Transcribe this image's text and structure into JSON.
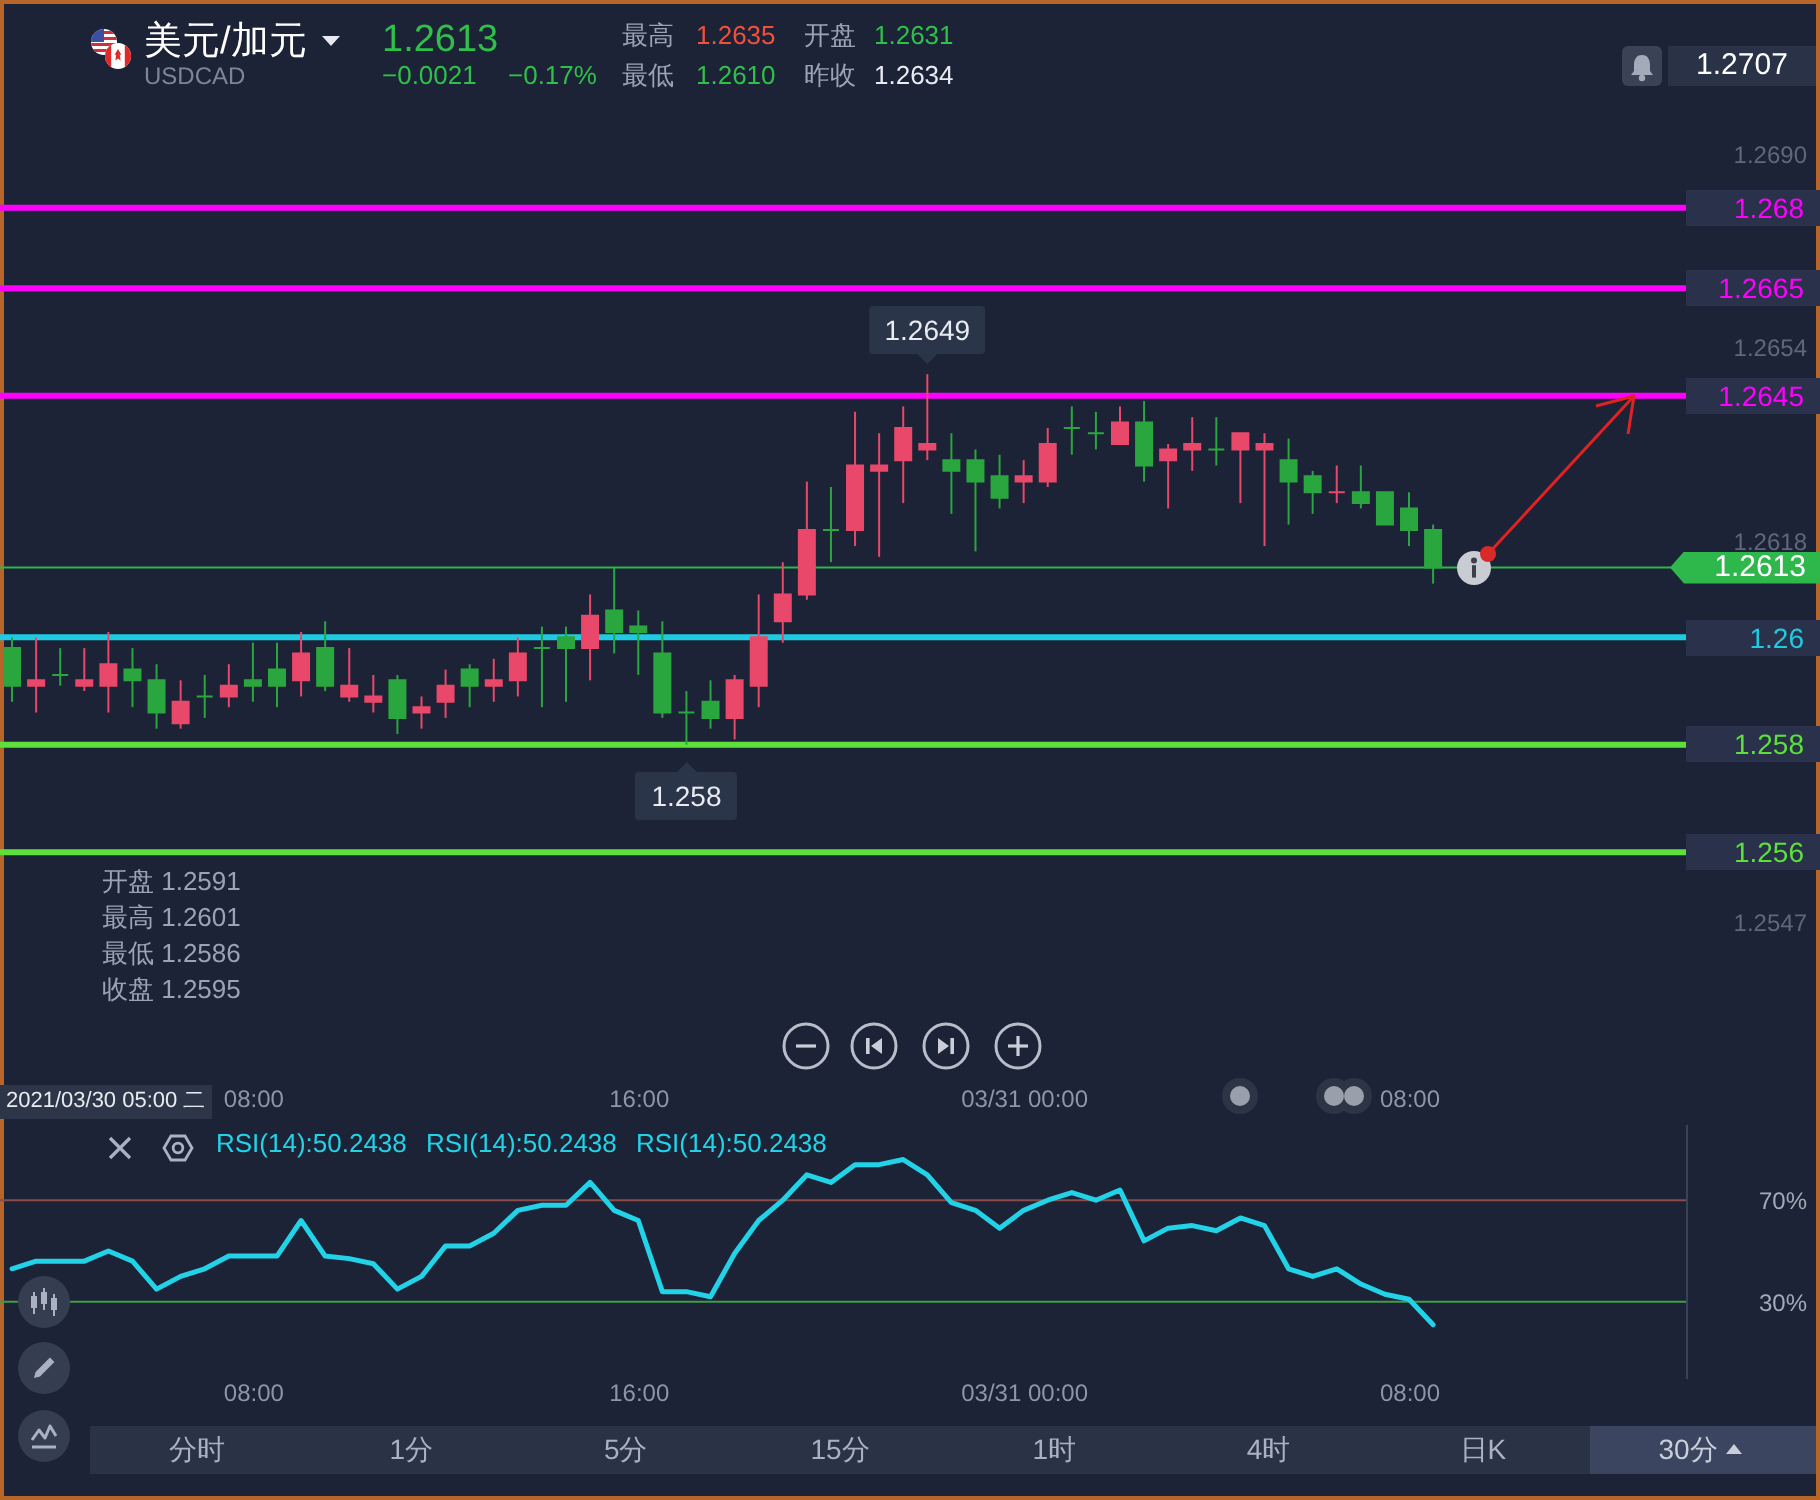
{
  "chart_data": [
    {
      "type": "other",
      "title": "美元/加元",
      "subtitle": "USDCAD",
      "annotations": [
        "1.2613",
        "−0.0021",
        "−0.17%",
        "最高",
        "1.2635",
        "开盘",
        "1.2631",
        "最低",
        "1.2610",
        "昨收",
        "1.2634",
        "1.2707"
      ]
    },
    {
      "type": "candlestick",
      "x": [
        "2021-03-30T03:00",
        "2021-03-30T03:30",
        "2021-03-30T04:00",
        "2021-03-30T04:30",
        "2021-03-30T05:00",
        "2021-03-30T05:30",
        "2021-03-30T06:00",
        "2021-03-30T06:30",
        "2021-03-30T07:00",
        "2021-03-30T07:30",
        "2021-03-30T08:00",
        "2021-03-30T08:30",
        "2021-03-30T09:00",
        "2021-03-30T09:30",
        "2021-03-30T10:00",
        "2021-03-30T10:30",
        "2021-03-30T11:00",
        "2021-03-30T11:30",
        "2021-03-30T12:00",
        "2021-03-30T12:30",
        "2021-03-30T13:00",
        "2021-03-30T13:30",
        "2021-03-30T14:00",
        "2021-03-30T14:30",
        "2021-03-30T15:00",
        "2021-03-30T15:30",
        "2021-03-30T16:00",
        "2021-03-30T16:30",
        "2021-03-30T17:00",
        "2021-03-30T17:30",
        "2021-03-30T18:00",
        "2021-03-30T18:30",
        "2021-03-30T19:00",
        "2021-03-30T19:30",
        "2021-03-30T20:00",
        "2021-03-30T20:30",
        "2021-03-30T21:00",
        "2021-03-30T21:30",
        "2021-03-30T22:00",
        "2021-03-30T22:30",
        "2021-03-30T23:00",
        "2021-03-30T23:30",
        "2021-03-31T00:00",
        "2021-03-31T00:30",
        "2021-03-31T01:00",
        "2021-03-31T01:30",
        "2021-03-31T02:00",
        "2021-03-31T02:30",
        "2021-03-31T03:00",
        "2021-03-31T03:30",
        "2021-03-31T04:00",
        "2021-03-31T04:30",
        "2021-03-31T05:00",
        "2021-03-31T05:30",
        "2021-03-31T06:00",
        "2021-03-31T06:30",
        "2021-03-31T07:00",
        "2021-03-31T07:30",
        "2021-03-31T08:00",
        "2021-03-31T08:30"
      ],
      "ohlc": [
        [
          1.2598,
          1.26,
          1.2588,
          1.2591
        ],
        [
          1.2591,
          1.26,
          1.2586,
          1.2592
        ],
        [
          1.2593,
          1.2598,
          1.2591,
          1.2593
        ],
        [
          1.2591,
          1.2598,
          1.259,
          1.2592
        ],
        [
          1.2591,
          1.2601,
          1.2586,
          1.2595
        ],
        [
          1.2594,
          1.2598,
          1.2587,
          1.2592
        ],
        [
          1.2592,
          1.2595,
          1.2583,
          1.2586
        ],
        [
          1.2584,
          1.2592,
          1.2583,
          1.2588
        ],
        [
          1.2589,
          1.2593,
          1.2585,
          1.2589
        ],
        [
          1.2589,
          1.2595,
          1.2587,
          1.2591
        ],
        [
          1.2592,
          1.2599,
          1.2588,
          1.2591
        ],
        [
          1.2594,
          1.2599,
          1.2587,
          1.2591
        ],
        [
          1.2592,
          1.2601,
          1.2589,
          1.2597
        ],
        [
          1.2598,
          1.2603,
          1.259,
          1.2591
        ],
        [
          1.2589,
          1.2598,
          1.2588,
          1.2591
        ],
        [
          1.2588,
          1.2593,
          1.2586,
          1.2589
        ],
        [
          1.2592,
          1.2593,
          1.2582,
          1.2585
        ],
        [
          1.2586,
          1.2589,
          1.2583,
          1.2587
        ],
        [
          1.2588,
          1.2594,
          1.2585,
          1.2591
        ],
        [
          1.2594,
          1.2595,
          1.2587,
          1.2591
        ],
        [
          1.2591,
          1.2596,
          1.2588,
          1.2592
        ],
        [
          1.2592,
          1.26,
          1.2589,
          1.2597
        ],
        [
          1.2598,
          1.2602,
          1.2587,
          1.2598
        ],
        [
          1.26,
          1.2602,
          1.2588,
          1.2598
        ],
        [
          1.2598,
          1.2608,
          1.2592,
          1.2604
        ],
        [
          1.2605,
          1.2613,
          1.2597,
          1.2601
        ],
        [
          1.2602,
          1.2605,
          1.2593,
          1.2601
        ],
        [
          1.2597,
          1.2603,
          1.2585,
          1.2586
        ],
        [
          1.2586,
          1.259,
          1.258,
          1.2586
        ],
        [
          1.2588,
          1.2592,
          1.2583,
          1.2585
        ],
        [
          1.2585,
          1.2593,
          1.2581,
          1.2592
        ],
        [
          1.2591,
          1.2608,
          1.2587,
          1.26
        ],
        [
          1.2603,
          1.2614,
          1.2599,
          1.2608
        ],
        [
          1.2608,
          1.2629,
          1.2607,
          1.262
        ],
        [
          1.262,
          1.2628,
          1.2614,
          1.262
        ],
        [
          1.262,
          1.2642,
          1.2617,
          1.2632
        ],
        [
          1.2631,
          1.2638,
          1.2615,
          1.2632
        ],
        [
          1.2633,
          1.2643,
          1.2625,
          1.2639
        ],
        [
          1.2635,
          1.2649,
          1.2633,
          1.2636
        ],
        [
          1.2633,
          1.2638,
          1.2623,
          1.2631
        ],
        [
          1.2633,
          1.2635,
          1.2616,
          1.2629
        ],
        [
          1.263,
          1.2634,
          1.2624,
          1.2626
        ],
        [
          1.2629,
          1.2633,
          1.2625,
          1.263
        ],
        [
          1.2629,
          1.2639,
          1.2628,
          1.2636
        ],
        [
          1.2639,
          1.2643,
          1.2634,
          1.2639
        ],
        [
          1.2638,
          1.2642,
          1.2635,
          1.2638
        ],
        [
          1.2636,
          1.2643,
          1.2636,
          1.264
        ],
        [
          1.264,
          1.2644,
          1.2629,
          1.2632
        ],
        [
          1.2633,
          1.2636,
          1.2624,
          1.2635
        ],
        [
          1.2635,
          1.2641,
          1.2631,
          1.2636
        ],
        [
          1.2635,
          1.2641,
          1.2632,
          1.2635
        ],
        [
          1.2635,
          1.2638,
          1.2625,
          1.2638
        ],
        [
          1.2635,
          1.2638,
          1.2617,
          1.2636
        ],
        [
          1.2633,
          1.2637,
          1.2621,
          1.2629
        ],
        [
          1.263,
          1.2631,
          1.2623,
          1.2627
        ],
        [
          1.2627,
          1.2632,
          1.2625,
          1.2627
        ],
        [
          1.2627,
          1.2632,
          1.2624,
          1.2625
        ],
        [
          1.2627,
          1.2627,
          1.2621,
          1.2621
        ],
        [
          1.2624,
          1.2627,
          1.2617,
          1.262
        ],
        [
          1.262,
          1.2621,
          1.261,
          1.2613
        ]
      ],
      "colors": [
        "#2aa63e",
        "#e9486a",
        "#2aa63e",
        "#e9486a",
        "#e9486a",
        "#2aa63e",
        "#2aa63e",
        "#e9486a",
        "#2aa63e",
        "#e9486a",
        "#2aa63e",
        "#2aa63e",
        "#e9486a",
        "#2aa63e",
        "#e9486a",
        "#e9486a",
        "#2aa63e",
        "#e9486a",
        "#e9486a",
        "#2aa63e",
        "#e9486a",
        "#e9486a",
        "#2aa63e",
        "#2aa63e",
        "#e9486a",
        "#2aa63e",
        "#2aa63e",
        "#2aa63e",
        "#2aa63e",
        "#2aa63e",
        "#e9486a",
        "#e9486a",
        "#e9486a",
        "#e9486a",
        "#2aa63e",
        "#e9486a",
        "#e9486a",
        "#e9486a",
        "#e9486a",
        "#2aa63e",
        "#2aa63e",
        "#2aa63e",
        "#e9486a",
        "#e9486a",
        "#2aa63e",
        "#2aa63e",
        "#e9486a",
        "#2aa63e",
        "#e9486a",
        "#e9486a",
        "#2aa63e",
        "#e9486a",
        "#e9486a",
        "#2aa63e",
        "#2aa63e",
        "#e9486a",
        "#2aa63e",
        "#2aa63e",
        "#2aa63e",
        "#2aa63e"
      ],
      "xlim": [
        "2021-03-30T02:45",
        "2021-03-31T13:45"
      ],
      "ylim": [
        1.2547,
        1.269
      ],
      "xticks": [
        {
          "value": "2021-03-30T08:00",
          "label": "08:00"
        },
        {
          "value": "2021-03-30T16:00",
          "label": "16:00"
        },
        {
          "value": "2021-03-31T00:00",
          "label": "03/31 00:00"
        },
        {
          "value": "2021-03-31T08:00",
          "label": "08:00"
        }
      ],
      "yticks": [
        {
          "value": 1.269,
          "label": "1.2690"
        },
        1.2654,
        1.2618,
        1.2547
      ],
      "ref_lines": [
        {
          "axis": "y",
          "value": 1.268,
          "label": "1.268",
          "color": "#ff00ff"
        },
        {
          "axis": "y",
          "value": 1.2665,
          "label": "1.2665",
          "color": "#ff00ff"
        },
        {
          "axis": "y",
          "value": 1.2645,
          "label": "1.2645",
          "color": "#ff00ff"
        },
        {
          "axis": "y",
          "value": 1.2613,
          "label": "1.2613",
          "color": "#2eb84b",
          "line_style": "solid"
        },
        {
          "axis": "y",
          "value": 1.26,
          "label": "1.26",
          "color": "#1fcbe3"
        },
        {
          "axis": "y",
          "value": 1.258,
          "label": "1.258",
          "color": "#5ee03c"
        },
        {
          "axis": "y",
          "value": 1.256,
          "label": "1.256",
          "color": "#5ee03c"
        }
      ],
      "annotations": [
        {
          "text": "1.2649",
          "x": "2021-03-30T22:00",
          "y": 1.2649
        },
        {
          "text": "1.258",
          "x": "2021-03-30T17:00",
          "y": 1.258
        },
        "2021/03/30 05:00 二",
        "开盘 1.2591",
        "最高 1.2601",
        "最低 1.2586",
        "收盘 1.2595"
      ]
    },
    {
      "type": "line",
      "x": [
        "2021-03-30T03:00",
        "2021-03-30T03:30",
        "2021-03-30T04:00",
        "2021-03-30T04:30",
        "2021-03-30T05:00",
        "2021-03-30T05:30",
        "2021-03-30T06:00",
        "2021-03-30T06:30",
        "2021-03-30T07:00",
        "2021-03-30T07:30",
        "2021-03-30T08:00",
        "2021-03-30T08:30",
        "2021-03-30T09:00",
        "2021-03-30T09:30",
        "2021-03-30T10:00",
        "2021-03-30T10:30",
        "2021-03-30T11:00",
        "2021-03-30T11:30",
        "2021-03-30T12:00",
        "2021-03-30T12:30",
        "2021-03-30T13:00",
        "2021-03-30T13:30",
        "2021-03-30T14:00",
        "2021-03-30T14:30",
        "2021-03-30T15:00",
        "2021-03-30T15:30",
        "2021-03-30T16:00",
        "2021-03-30T16:30",
        "2021-03-30T17:00",
        "2021-03-30T17:30",
        "2021-03-30T18:00",
        "2021-03-30T18:30",
        "2021-03-30T19:00",
        "2021-03-30T19:30",
        "2021-03-30T20:00",
        "2021-03-30T20:30",
        "2021-03-30T21:00",
        "2021-03-30T21:30",
        "2021-03-30T22:00",
        "2021-03-30T22:30",
        "2021-03-30T23:00",
        "2021-03-30T23:30",
        "2021-03-31T00:00",
        "2021-03-31T00:30",
        "2021-03-31T01:00",
        "2021-03-31T01:30",
        "2021-03-31T02:00",
        "2021-03-31T02:30",
        "2021-03-31T03:00",
        "2021-03-31T03:30",
        "2021-03-31T04:00",
        "2021-03-31T04:30",
        "2021-03-31T05:00",
        "2021-03-31T05:30",
        "2021-03-31T06:00",
        "2021-03-31T06:30",
        "2021-03-31T07:00",
        "2021-03-31T07:30",
        "2021-03-31T08:00",
        "2021-03-31T08:30"
      ],
      "series": [
        {
          "name": "RSI(14):50.2438",
          "color": "#22d3e8",
          "values": [
            43,
            46,
            46,
            46,
            50,
            46,
            35,
            40,
            43,
            48,
            48,
            48,
            62,
            48,
            47,
            45,
            35,
            40,
            52,
            52,
            57,
            66,
            68,
            68,
            77,
            66,
            62,
            34,
            34,
            32,
            49,
            62,
            70,
            80,
            77,
            84,
            84,
            86,
            80,
            69,
            66,
            59,
            66,
            70,
            73,
            70,
            74,
            54,
            59,
            60,
            58,
            63,
            60,
            43,
            40,
            43,
            37,
            33,
            31,
            21
          ]
        }
      ],
      "xlim": [
        "2021-03-30T02:45",
        "2021-03-31T13:45"
      ],
      "ylim": [
        0,
        100
      ],
      "xticks": [
        {
          "value": "2021-03-30T08:00",
          "label": "08:00"
        },
        {
          "value": "2021-03-30T16:00",
          "label": "16:00"
        },
        {
          "value": "2021-03-31T00:00",
          "label": "03/31 00:00"
        },
        {
          "value": "2021-03-31T08:00",
          "label": "08:00"
        }
      ],
      "yticks": [
        {
          "value": 70,
          "label": "70%"
        },
        {
          "value": 30,
          "label": "30%"
        }
      ],
      "ref_lines": [
        {
          "axis": "y",
          "value": 70,
          "color": "#8c4a4a",
          "line_style": "solid"
        },
        {
          "axis": "y",
          "value": 30,
          "color": "#3f9d4a",
          "line_style": "solid"
        }
      ],
      "legend": "top left",
      "annotations": [
        "RSI(14):50.2438",
        "RSI(14):50.2438"
      ]
    },
    {
      "type": "other",
      "annotations": [
        "分时",
        "1分",
        "5分",
        "15分",
        "1时",
        "4时",
        "日K",
        "30分"
      ]
    }
  ]
}
